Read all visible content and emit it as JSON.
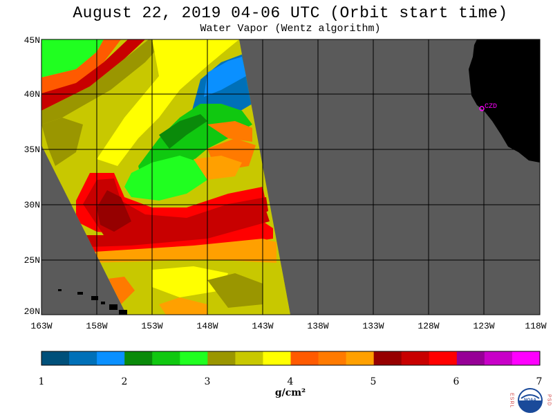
{
  "header": {
    "title": "August 22, 2019  04-06 UTC  (Orbit start time)",
    "subtitle": "Water Vapor (Wentz algorithm)"
  },
  "map": {
    "lat_labels": [
      "45N",
      "40N",
      "35N",
      "30N",
      "25N",
      "20N"
    ],
    "lon_labels": [
      "163W",
      "158W",
      "153W",
      "148W",
      "143W",
      "138W",
      "133W",
      "128W",
      "123W",
      "118W"
    ],
    "station_label": "CZD",
    "colors": {
      "no_data": "#5a5a5a",
      "land": "#000000",
      "station": "#ff00ff",
      "grid": "#000000"
    }
  },
  "colorbar": {
    "ticks": [
      "1",
      "2",
      "3",
      "4",
      "5",
      "6",
      "7"
    ],
    "units": "g/cm²",
    "colors": [
      "#00507a",
      "#0070b8",
      "#0a90ff",
      "#0a8a0a",
      "#10c810",
      "#20ff20",
      "#9a9600",
      "#c8c800",
      "#ffff00",
      "#ff5a00",
      "#ff7a00",
      "#ffa000",
      "#960000",
      "#c80000",
      "#ff0000",
      "#960096",
      "#c800c8",
      "#ff00ff"
    ]
  },
  "logo": {
    "text": "NOAA",
    "left_letters": "ESRL",
    "right_letters": "PSD"
  }
}
